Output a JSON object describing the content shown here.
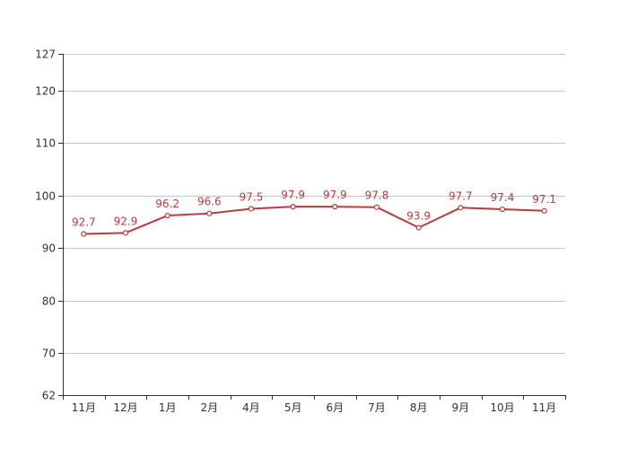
{
  "chart_data": {
    "type": "line",
    "categories": [
      "11月",
      "12月",
      "1月",
      "2月",
      "4月",
      "5月",
      "6月",
      "7月",
      "8月",
      "9月",
      "10月",
      "11月"
    ],
    "series": [
      {
        "values": [
          92.7,
          92.9,
          96.2,
          96.6,
          97.5,
          97.9,
          97.9,
          97.8,
          93.9,
          97.7,
          97.4,
          97.1
        ],
        "color": "#c0393b"
      }
    ],
    "data_labels": [
      "92.7",
      "92.9",
      "96.2",
      "96.6",
      "97.5",
      "97.9",
      "97.9",
      "97.8",
      "93.9",
      "97.7",
      "97.4",
      "97.1"
    ],
    "yticks": [
      62,
      70,
      80,
      90,
      100,
      110,
      120,
      127
    ],
    "ytick_labels": [
      "62",
      "70",
      "80",
      "90",
      "100",
      "110",
      "120",
      "127"
    ],
    "ylim": [
      62,
      127
    ],
    "grid": true,
    "title": "",
    "xlabel": "",
    "ylabel": ""
  }
}
